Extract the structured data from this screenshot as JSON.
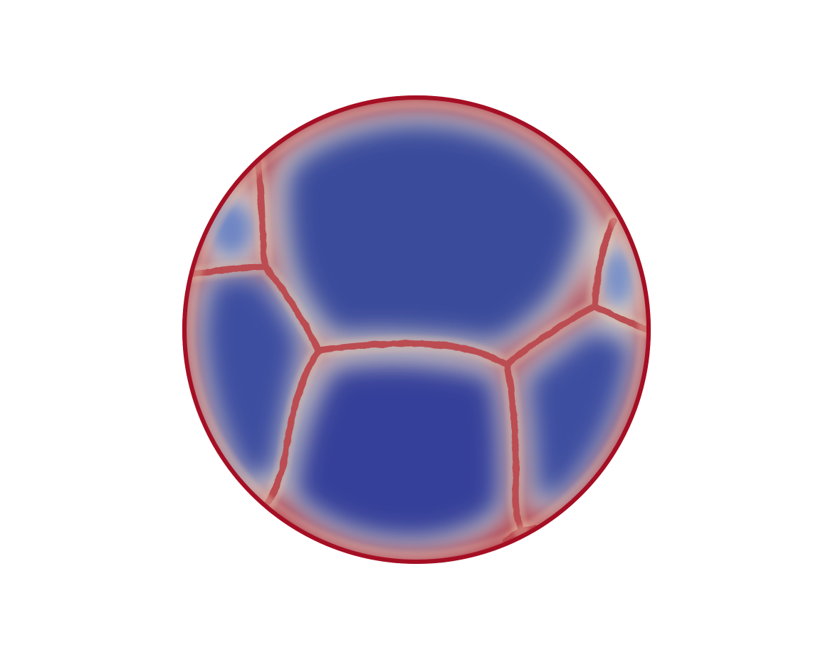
{
  "scene": {
    "background_color": "#ffffff",
    "colormap": {
      "low": "#3a4ca0",
      "mid": "#dcd4cc",
      "high": "#a50f24"
    },
    "cells": [
      {
        "name": "top-center",
        "core_color": "#3a4c9c"
      },
      {
        "name": "left-top-small",
        "core_color": "#6f86c4"
      },
      {
        "name": "left-middle",
        "core_color": "#3c4ea0"
      },
      {
        "name": "bottom-center",
        "core_color": "#34409a"
      },
      {
        "name": "right-middle",
        "core_color": "#3c4ea0"
      },
      {
        "name": "right-top-small",
        "core_color": "#7890c8"
      },
      {
        "name": "bottom-right-small",
        "core_color": "#e8b89a"
      }
    ]
  }
}
